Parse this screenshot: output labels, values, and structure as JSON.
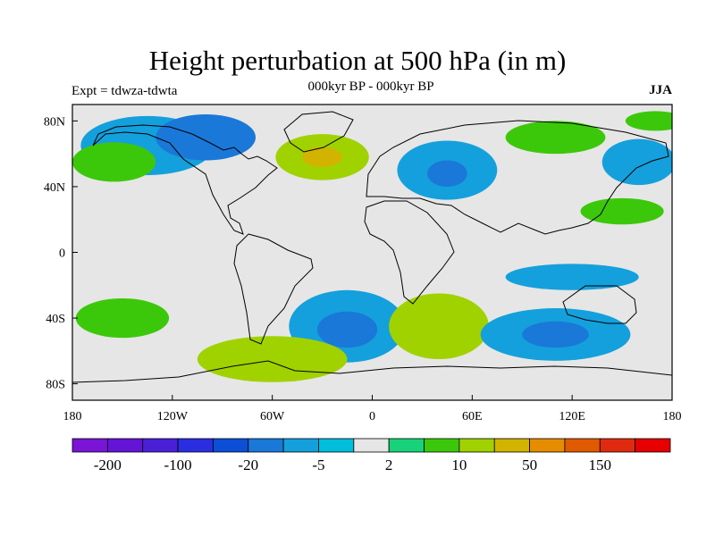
{
  "title": "Height perturbation at 500 hPa (in m)",
  "subtitle": "000kyr BP - 000kyr BP",
  "left_label": "Expt = tdwza-tdwta",
  "right_label": "JJA",
  "map": {
    "projection": "cylindrical-equidistant",
    "lon_range": [
      -180,
      180
    ],
    "lat_range": [
      -90,
      90
    ],
    "x_ticks": [
      {
        "lon": -180,
        "label": "180"
      },
      {
        "lon": -120,
        "label": "120W"
      },
      {
        "lon": -60,
        "label": "60W"
      },
      {
        "lon": 0,
        "label": "0"
      },
      {
        "lon": 60,
        "label": "60E"
      },
      {
        "lon": 120,
        "label": "120E"
      },
      {
        "lon": 180,
        "label": "180"
      }
    ],
    "y_ticks": [
      {
        "lat": 80,
        "label": "80N"
      },
      {
        "lat": 40,
        "label": "40N"
      },
      {
        "lat": 0,
        "label": "0"
      },
      {
        "lat": -40,
        "label": "40S"
      },
      {
        "lat": -80,
        "label": "80S"
      }
    ]
  },
  "colorbar": {
    "colors": [
      "#7a14d6",
      "#6414d6",
      "#4a1fd8",
      "#2a2ee0",
      "#0a4fd6",
      "#1a78d8",
      "#14a0dc",
      "#00bedc",
      "#e6e6e6",
      "#18d27a",
      "#3cc80a",
      "#a0d200",
      "#d2b400",
      "#e68c00",
      "#e05a00",
      "#e02a10",
      "#e60000"
    ],
    "labels": [
      {
        "after_box": 1,
        "text": "-200"
      },
      {
        "after_box": 3,
        "text": "-100"
      },
      {
        "after_box": 5,
        "text": "-20"
      },
      {
        "after_box": 7,
        "text": "-5"
      },
      {
        "after_box": 9,
        "text": "2"
      },
      {
        "after_box": 11,
        "text": "10"
      },
      {
        "after_box": 13,
        "text": "50"
      },
      {
        "after_box": 15,
        "text": "150"
      }
    ]
  },
  "field_regions": [
    {
      "lon": -135,
      "lat": 65,
      "rx": 40,
      "ry": 18,
      "level": 6
    },
    {
      "lon": -100,
      "lat": 70,
      "rx": 30,
      "ry": 14,
      "level": 5
    },
    {
      "lon": -155,
      "lat": 55,
      "rx": 25,
      "ry": 12,
      "level": 10
    },
    {
      "lon": -30,
      "lat": 58,
      "rx": 28,
      "ry": 14,
      "level": 11
    },
    {
      "lon": -30,
      "lat": 58,
      "rx": 12,
      "ry": 6,
      "level": 12
    },
    {
      "lon": 45,
      "lat": 50,
      "rx": 30,
      "ry": 18,
      "level": 6
    },
    {
      "lon": 45,
      "lat": 48,
      "rx": 12,
      "ry": 8,
      "level": 5
    },
    {
      "lon": 160,
      "lat": 55,
      "rx": 22,
      "ry": 14,
      "level": 6
    },
    {
      "lon": 110,
      "lat": 70,
      "rx": 30,
      "ry": 10,
      "level": 10
    },
    {
      "lon": 170,
      "lat": 80,
      "rx": 18,
      "ry": 6,
      "level": 10
    },
    {
      "lon": -150,
      "lat": -40,
      "rx": 28,
      "ry": 12,
      "level": 10
    },
    {
      "lon": -15,
      "lat": -45,
      "rx": 35,
      "ry": 22,
      "level": 6
    },
    {
      "lon": -15,
      "lat": -47,
      "rx": 18,
      "ry": 11,
      "level": 5
    },
    {
      "lon": 40,
      "lat": -45,
      "rx": 30,
      "ry": 20,
      "level": 11
    },
    {
      "lon": -60,
      "lat": -65,
      "rx": 45,
      "ry": 14,
      "level": 11
    },
    {
      "lon": 110,
      "lat": -50,
      "rx": 45,
      "ry": 16,
      "level": 6
    },
    {
      "lon": 110,
      "lat": -50,
      "rx": 20,
      "ry": 8,
      "level": 5
    },
    {
      "lon": 120,
      "lat": -15,
      "rx": 40,
      "ry": 8,
      "level": 6
    },
    {
      "lon": 150,
      "lat": 25,
      "rx": 25,
      "ry": 8,
      "level": 10
    }
  ]
}
